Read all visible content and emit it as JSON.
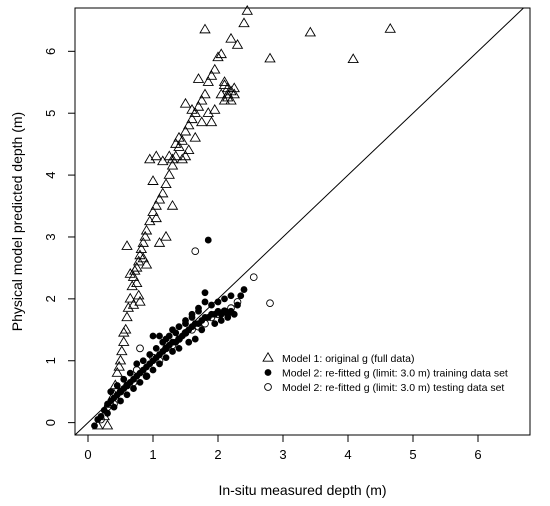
{
  "chart_data": {
    "type": "scatter",
    "title": "",
    "xlabel": "In-situ measured depth (m)",
    "ylabel": "Physical model predicted depth (m)",
    "xlim": [
      -0.2,
      6.8
    ],
    "ylim": [
      -0.2,
      6.7
    ],
    "xticks": [
      0,
      1,
      2,
      3,
      4,
      5,
      6
    ],
    "yticks": [
      0,
      1,
      2,
      3,
      4,
      5,
      6
    ],
    "grid": false,
    "reference_line": "y = x",
    "legend_position": "bottom-right",
    "series": [
      {
        "name": "Model 1: original g (full data)",
        "marker": "open-triangle",
        "points": [
          [
            0.15,
            -0.05
          ],
          [
            0.25,
            0.1
          ],
          [
            0.3,
            -0.05
          ],
          [
            0.35,
            0.3
          ],
          [
            0.4,
            0.45
          ],
          [
            0.42,
            0.6
          ],
          [
            0.45,
            0.8
          ],
          [
            0.48,
            0.9
          ],
          [
            0.5,
            1.0
          ],
          [
            0.52,
            1.15
          ],
          [
            0.55,
            1.3
          ],
          [
            0.58,
            1.5
          ],
          [
            0.6,
            1.7
          ],
          [
            0.62,
            1.85
          ],
          [
            0.65,
            2.0
          ],
          [
            0.68,
            2.2
          ],
          [
            0.7,
            2.35
          ],
          [
            0.72,
            2.45
          ],
          [
            0.75,
            2.5
          ],
          [
            0.78,
            2.6
          ],
          [
            0.8,
            2.7
          ],
          [
            0.82,
            2.8
          ],
          [
            0.85,
            2.9
          ],
          [
            0.88,
            3.0
          ],
          [
            0.9,
            3.1
          ],
          [
            0.95,
            3.25
          ],
          [
            1.0,
            3.4
          ],
          [
            1.05,
            3.5
          ],
          [
            1.1,
            3.6
          ],
          [
            1.15,
            3.7
          ],
          [
            1.2,
            3.85
          ],
          [
            1.25,
            4.0
          ],
          [
            1.3,
            4.15
          ],
          [
            1.35,
            4.3
          ],
          [
            1.4,
            4.45
          ],
          [
            1.45,
            4.55
          ],
          [
            1.5,
            4.7
          ],
          [
            1.55,
            4.8
          ],
          [
            1.6,
            4.9
          ],
          [
            1.65,
            5.0
          ],
          [
            1.7,
            5.1
          ],
          [
            1.75,
            5.2
          ],
          [
            1.8,
            5.3
          ],
          [
            1.85,
            5.5
          ],
          [
            1.9,
            5.6
          ],
          [
            1.95,
            5.7
          ],
          [
            2.0,
            5.9
          ],
          [
            2.05,
            5.3
          ],
          [
            2.1,
            5.2
          ],
          [
            2.15,
            5.25
          ],
          [
            2.2,
            5.35
          ],
          [
            2.25,
            5.3
          ],
          [
            2.15,
            5.4
          ],
          [
            2.1,
            5.5
          ],
          [
            0.55,
            1.45
          ],
          [
            0.6,
            2.85
          ],
          [
            0.65,
            2.4
          ],
          [
            0.7,
            1.9
          ],
          [
            0.75,
            2.25
          ],
          [
            0.8,
            1.95
          ],
          [
            0.85,
            2.65
          ],
          [
            0.9,
            2.55
          ],
          [
            1.0,
            3.9
          ],
          [
            1.05,
            3.3
          ],
          [
            1.1,
            2.9
          ],
          [
            1.2,
            3.0
          ],
          [
            1.25,
            4.3
          ],
          [
            1.3,
            3.5
          ],
          [
            1.35,
            4.5
          ],
          [
            1.45,
            4.25
          ],
          [
            1.5,
            5.15
          ],
          [
            1.55,
            4.4
          ],
          [
            1.6,
            5.05
          ],
          [
            1.65,
            4.6
          ],
          [
            1.7,
            5.55
          ],
          [
            1.75,
            4.85
          ],
          [
            1.8,
            6.35
          ],
          [
            1.85,
            5.0
          ],
          [
            1.9,
            4.85
          ],
          [
            1.95,
            5.05
          ],
          [
            2.05,
            5.95
          ],
          [
            2.1,
            5.45
          ],
          [
            2.15,
            5.3
          ],
          [
            2.2,
            5.2
          ],
          [
            2.25,
            5.4
          ],
          [
            2.2,
            6.2
          ],
          [
            2.3,
            6.1
          ],
          [
            2.4,
            6.45
          ],
          [
            2.45,
            6.65
          ],
          [
            2.8,
            5.88
          ],
          [
            3.42,
            6.3
          ],
          [
            4.08,
            5.87
          ],
          [
            4.65,
            6.36
          ],
          [
            0.78,
            2.05
          ],
          [
            0.95,
            4.25
          ],
          [
            1.05,
            4.3
          ],
          [
            1.15,
            4.22
          ],
          [
            1.3,
            4.25
          ],
          [
            1.4,
            4.6
          ],
          [
            1.5,
            4.3
          ]
        ]
      },
      {
        "name": "Model 2: re-fitted g (limit: 3.0 m) training data set",
        "marker": "filled-circle",
        "points": [
          [
            0.1,
            -0.05
          ],
          [
            0.15,
            0.05
          ],
          [
            0.2,
            0.1
          ],
          [
            0.25,
            0.2
          ],
          [
            0.3,
            0.3
          ],
          [
            0.35,
            0.35
          ],
          [
            0.4,
            0.4
          ],
          [
            0.45,
            0.45
          ],
          [
            0.5,
            0.5
          ],
          [
            0.55,
            0.55
          ],
          [
            0.6,
            0.6
          ],
          [
            0.65,
            0.65
          ],
          [
            0.7,
            0.7
          ],
          [
            0.75,
            0.75
          ],
          [
            0.8,
            0.8
          ],
          [
            0.85,
            0.85
          ],
          [
            0.9,
            0.9
          ],
          [
            0.95,
            0.95
          ],
          [
            1.0,
            1.0
          ],
          [
            1.05,
            1.05
          ],
          [
            1.1,
            1.1
          ],
          [
            1.15,
            1.15
          ],
          [
            1.2,
            1.2
          ],
          [
            1.25,
            1.25
          ],
          [
            1.3,
            1.3
          ],
          [
            1.35,
            1.3
          ],
          [
            1.4,
            1.35
          ],
          [
            1.45,
            1.4
          ],
          [
            1.5,
            1.45
          ],
          [
            1.55,
            1.5
          ],
          [
            1.6,
            1.55
          ],
          [
            1.65,
            1.6
          ],
          [
            1.7,
            1.6
          ],
          [
            1.75,
            1.65
          ],
          [
            1.8,
            1.7
          ],
          [
            1.85,
            1.7
          ],
          [
            1.9,
            1.75
          ],
          [
            1.95,
            1.75
          ],
          [
            2.0,
            1.8
          ],
          [
            2.05,
            1.75
          ],
          [
            2.1,
            1.8
          ],
          [
            2.15,
            1.75
          ],
          [
            2.2,
            1.8
          ],
          [
            2.25,
            1.75
          ],
          [
            2.3,
            1.9
          ],
          [
            2.35,
            2.05
          ],
          [
            2.4,
            2.15
          ],
          [
            0.3,
            0.15
          ],
          [
            0.35,
            0.5
          ],
          [
            0.4,
            0.25
          ],
          [
            0.45,
            0.6
          ],
          [
            0.5,
            0.35
          ],
          [
            0.55,
            0.7
          ],
          [
            0.6,
            0.45
          ],
          [
            0.65,
            0.8
          ],
          [
            0.7,
            0.55
          ],
          [
            0.75,
            0.95
          ],
          [
            0.8,
            0.65
          ],
          [
            0.85,
            1.0
          ],
          [
            0.9,
            0.75
          ],
          [
            0.95,
            1.1
          ],
          [
            1.0,
            0.85
          ],
          [
            1.05,
            1.2
          ],
          [
            1.1,
            0.95
          ],
          [
            1.15,
            1.3
          ],
          [
            1.2,
            1.05
          ],
          [
            1.25,
            1.4
          ],
          [
            1.3,
            1.15
          ],
          [
            1.35,
            1.45
          ],
          [
            1.4,
            1.2
          ],
          [
            1.5,
            1.65
          ],
          [
            1.55,
            1.3
          ],
          [
            1.6,
            1.7
          ],
          [
            1.65,
            1.35
          ],
          [
            1.7,
            1.8
          ],
          [
            1.75,
            1.5
          ],
          [
            1.8,
            1.95
          ],
          [
            1.85,
            2.95
          ],
          [
            1.9,
            1.9
          ],
          [
            1.95,
            1.6
          ],
          [
            2.0,
            1.95
          ],
          [
            2.05,
            1.65
          ],
          [
            2.1,
            2.0
          ],
          [
            2.15,
            1.7
          ],
          [
            2.2,
            2.05
          ],
          [
            1.0,
            1.4
          ],
          [
            1.1,
            1.4
          ],
          [
            1.2,
            1.35
          ],
          [
            1.3,
            1.5
          ],
          [
            1.4,
            1.55
          ],
          [
            1.5,
            1.6
          ],
          [
            1.6,
            1.75
          ],
          [
            1.7,
            1.85
          ],
          [
            1.8,
            2.1
          ]
        ]
      },
      {
        "name": "Model 2: re-fitted g (limit: 3.0 m) testing data set",
        "marker": "open-circle",
        "points": [
          [
            0.2,
            0.05
          ],
          [
            0.3,
            0.25
          ],
          [
            0.4,
            0.3
          ],
          [
            0.5,
            0.5
          ],
          [
            0.6,
            0.6
          ],
          [
            0.7,
            0.65
          ],
          [
            0.75,
            0.85
          ],
          [
            0.8,
            1.2
          ],
          [
            0.9,
            0.75
          ],
          [
            1.0,
            1.05
          ],
          [
            1.1,
            1.0
          ],
          [
            1.2,
            1.2
          ],
          [
            1.3,
            1.25
          ],
          [
            1.4,
            1.35
          ],
          [
            1.5,
            1.45
          ],
          [
            1.6,
            1.5
          ],
          [
            1.65,
            2.77
          ],
          [
            1.7,
            1.55
          ],
          [
            1.8,
            1.6
          ],
          [
            1.9,
            1.7
          ],
          [
            2.0,
            1.75
          ],
          [
            2.1,
            1.8
          ],
          [
            2.2,
            1.85
          ],
          [
            2.3,
            1.95
          ],
          [
            2.55,
            2.35
          ],
          [
            2.8,
            1.93
          ]
        ]
      }
    ]
  }
}
